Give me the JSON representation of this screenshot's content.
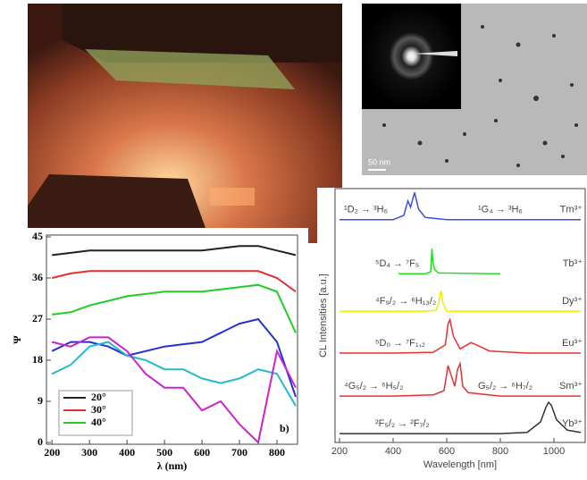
{
  "images": {
    "tem": {
      "scale_label": "50 nm"
    }
  },
  "chart_data": [
    {
      "type": "line",
      "ylabel": "Ψ",
      "xlabel": "λ (nm)",
      "annotation": "b)",
      "xlim": [
        190,
        850
      ],
      "ylim": [
        0,
        45
      ],
      "xticks": [
        200,
        300,
        400,
        500,
        600,
        700,
        800
      ],
      "yticks": [
        0,
        9,
        18,
        27,
        36,
        45
      ],
      "legend": "lower left",
      "x": [
        200,
        250,
        300,
        350,
        400,
        450,
        500,
        550,
        600,
        650,
        700,
        750,
        800,
        850
      ],
      "series": [
        {
          "name": "20°",
          "color": "#222222",
          "values": [
            41,
            41.5,
            42,
            42,
            42,
            42,
            42,
            42,
            42,
            42.5,
            43,
            43,
            42,
            41
          ]
        },
        {
          "name": "30°",
          "color": "#e03030",
          "values": [
            36,
            37,
            37.5,
            37.5,
            37.5,
            37.5,
            37.5,
            37.5,
            37.5,
            37.5,
            37.5,
            37.5,
            36,
            33
          ]
        },
        {
          "name": "40°",
          "color": "#22cc22",
          "values": [
            28,
            28.5,
            30,
            31,
            32,
            32.5,
            33,
            33,
            33,
            33.5,
            34,
            34.5,
            33,
            24
          ]
        },
        {
          "color": "#2233cc",
          "values": [
            20,
            22,
            22,
            21,
            19,
            20,
            21,
            21.5,
            22,
            24,
            26,
            27,
            22,
            10
          ]
        },
        {
          "color": "#22bbcc",
          "values": [
            15,
            17,
            21,
            22,
            19,
            18,
            16,
            16,
            14,
            13,
            14,
            16,
            15,
            8
          ]
        },
        {
          "color": "#cc22cc",
          "values": [
            22,
            21,
            23,
            23,
            20,
            15,
            12,
            12,
            7,
            9,
            4,
            0,
            20,
            12
          ]
        }
      ]
    },
    {
      "type": "line",
      "xlabel": "Wavelength [nm]",
      "ylabel": "CL Intensities [a.u.]",
      "xlim": [
        200,
        1100
      ],
      "ylim": [
        0,
        6
      ],
      "xticks": [
        200,
        400,
        600,
        800,
        1000
      ],
      "series": [
        {
          "name": "Tm³⁺",
          "color": "#3b4fe0",
          "annotations": [
            "¹D₂ → ³H₆",
            "¹G₄ → ³H₆"
          ],
          "x": [
            200,
            400,
            440,
            455,
            465,
            480,
            495,
            520,
            600,
            800,
            1100
          ],
          "values": [
            5.3,
            5.3,
            5.4,
            5.75,
            5.6,
            5.95,
            5.55,
            5.35,
            5.3,
            5.3,
            5.3
          ]
        },
        {
          "name": "Tb³⁺",
          "color": "#22dd22",
          "annotations": [
            "⁵D₄ → ⁷F₅"
          ],
          "x": [
            420,
            520,
            540,
            545,
            548,
            555,
            570,
            800
          ],
          "values": [
            4.0,
            4.0,
            4.05,
            4.6,
            4.3,
            4.1,
            4.02,
            4.0
          ]
        },
        {
          "name": "Dy³⁺",
          "color": "#eeee00",
          "annotations": [
            "⁴F₉/₂ → ⁶H₁₃/₂"
          ],
          "x": [
            200,
            500,
            560,
            570,
            578,
            586,
            600,
            800,
            1100
          ],
          "values": [
            3.1,
            3.1,
            3.12,
            3.3,
            3.6,
            3.3,
            3.1,
            3.1,
            3.1
          ]
        },
        {
          "name": "Eu³⁺",
          "color": "#e83030",
          "annotations": [
            "⁵D₀ → ⁷F₁,₂"
          ],
          "x": [
            200,
            400,
            550,
            595,
            605,
            612,
            625,
            650,
            690,
            710,
            760,
            900,
            1100
          ],
          "values": [
            2.1,
            2.1,
            2.12,
            2.3,
            2.8,
            2.9,
            2.5,
            2.2,
            2.35,
            2.3,
            2.15,
            2.1,
            2.1
          ]
        },
        {
          "name": "Sm³⁺",
          "color": "#e83030",
          "annotations": [
            "⁴G₅/₂ → ⁶H₅/₂",
            "G₅/₂ → ⁶H₇/₂"
          ],
          "x": [
            200,
            400,
            550,
            590,
            605,
            615,
            630,
            640,
            650,
            660,
            680,
            800,
            1100
          ],
          "values": [
            1.07,
            1.07,
            1.1,
            1.2,
            1.8,
            1.6,
            1.3,
            1.7,
            1.85,
            1.3,
            1.15,
            1.07,
            1.07
          ]
        },
        {
          "name": "Yb³⁺",
          "color": "#333333",
          "annotations": [
            "²F₅/₂ → ²F₇/₂"
          ],
          "x": [
            200,
            400,
            600,
            800,
            900,
            950,
            970,
            980,
            990,
            1010,
            1050,
            1100
          ],
          "values": [
            0.17,
            0.17,
            0.17,
            0.17,
            0.2,
            0.45,
            0.8,
            0.92,
            0.85,
            0.5,
            0.25,
            0.2
          ]
        }
      ]
    }
  ]
}
